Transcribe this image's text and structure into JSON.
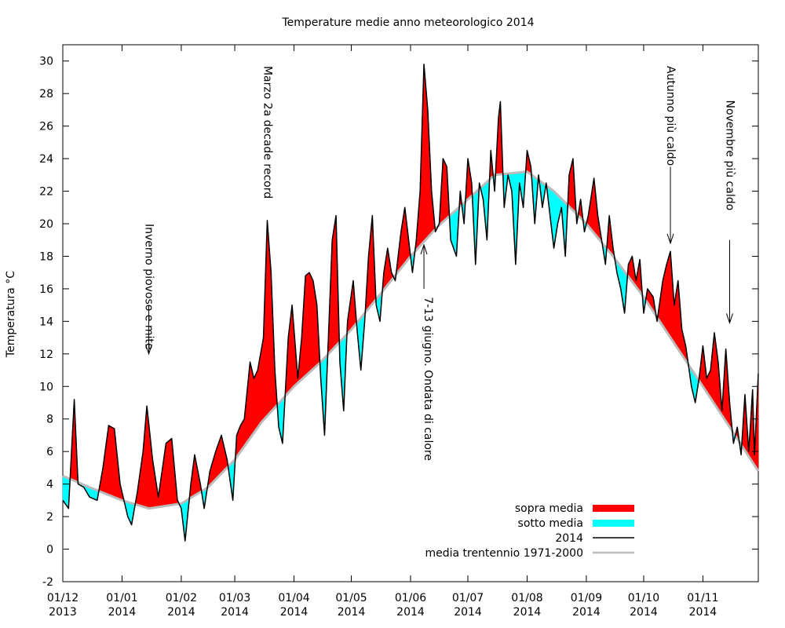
{
  "chart_data": {
    "type": "area",
    "title": "Temperature medie anno meteorologico 2014",
    "ylabel": "Temperatura °C",
    "xlabel": "",
    "ylim": [
      -2,
      31
    ],
    "yticks": [
      -2,
      0,
      2,
      4,
      6,
      8,
      10,
      12,
      14,
      16,
      18,
      20,
      22,
      24,
      26,
      28,
      30
    ],
    "x_range": [
      "2013-12-01",
      "2014-11-30"
    ],
    "xticks": [
      {
        "date": "2013-12-01",
        "label1": "01/12",
        "label2": "2013"
      },
      {
        "date": "2014-01-01",
        "label1": "01/01",
        "label2": "2014"
      },
      {
        "date": "2014-02-01",
        "label1": "01/02",
        "label2": "2014"
      },
      {
        "date": "2014-03-01",
        "label1": "01/03",
        "label2": "2014"
      },
      {
        "date": "2014-04-01",
        "label1": "01/04",
        "label2": "2014"
      },
      {
        "date": "2014-05-01",
        "label1": "01/05",
        "label2": "2014"
      },
      {
        "date": "2014-06-01",
        "label1": "01/06",
        "label2": "2014"
      },
      {
        "date": "2014-07-01",
        "label1": "01/07",
        "label2": "2014"
      },
      {
        "date": "2014-08-01",
        "label1": "01/08",
        "label2": "2014"
      },
      {
        "date": "2014-09-01",
        "label1": "01/09",
        "label2": "2014"
      },
      {
        "date": "2014-10-01",
        "label1": "01/10",
        "label2": "2014"
      },
      {
        "date": "2014-11-01",
        "label1": "01/11",
        "label2": "2014"
      }
    ],
    "legend": {
      "position": "bottom-right",
      "items": [
        {
          "label": "sopra media",
          "kind": "fill",
          "color": "#ff0000"
        },
        {
          "label": "sotto media",
          "kind": "fill",
          "color": "#00ffff"
        },
        {
          "label": "2014",
          "kind": "line",
          "color": "#000000"
        },
        {
          "label": "media trentennio 1971-2000",
          "kind": "line",
          "color": "#bbbbbb"
        }
      ]
    },
    "colors": {
      "above": "#ff0000",
      "below": "#00ffff",
      "actual": "#000000",
      "normal": "#bbbbbb"
    },
    "series": [
      {
        "name": "2014",
        "points": [
          [
            "2013-12-01",
            3.0
          ],
          [
            "2013-12-04",
            2.5
          ],
          [
            "2013-12-07",
            9.2
          ],
          [
            "2013-12-09",
            4.0
          ],
          [
            "2013-12-12",
            3.8
          ],
          [
            "2013-12-15",
            3.2
          ],
          [
            "2013-12-19",
            3.0
          ],
          [
            "2013-12-22",
            5.0
          ],
          [
            "2013-12-25",
            7.6
          ],
          [
            "2013-12-28",
            7.4
          ],
          [
            "2013-12-31",
            4.0
          ],
          [
            "2014-01-04",
            2.0
          ],
          [
            "2014-01-06",
            1.5
          ],
          [
            "2014-01-09",
            3.5
          ],
          [
            "2014-01-12",
            6.0
          ],
          [
            "2014-01-14",
            8.8
          ],
          [
            "2014-01-17",
            5.5
          ],
          [
            "2014-01-20",
            3.2
          ],
          [
            "2014-01-24",
            6.5
          ],
          [
            "2014-01-27",
            6.8
          ],
          [
            "2014-01-30",
            3.0
          ],
          [
            "2014-02-01",
            2.5
          ],
          [
            "2014-02-03",
            0.5
          ],
          [
            "2014-02-06",
            4.0
          ],
          [
            "2014-02-08",
            5.8
          ],
          [
            "2014-02-11",
            4.0
          ],
          [
            "2014-02-13",
            2.5
          ],
          [
            "2014-02-16",
            4.8
          ],
          [
            "2014-02-19",
            6.0
          ],
          [
            "2014-02-22",
            7.0
          ],
          [
            "2014-02-25",
            5.5
          ],
          [
            "2014-02-28",
            3.0
          ],
          [
            "2014-03-02",
            7.0
          ],
          [
            "2014-03-04",
            7.6
          ],
          [
            "2014-03-06",
            8.0
          ],
          [
            "2014-03-09",
            11.5
          ],
          [
            "2014-03-11",
            10.5
          ],
          [
            "2014-03-13",
            11.0
          ],
          [
            "2014-03-16",
            13.0
          ],
          [
            "2014-03-18",
            20.2
          ],
          [
            "2014-03-20",
            17.0
          ],
          [
            "2014-03-22",
            11.0
          ],
          [
            "2014-03-24",
            7.5
          ],
          [
            "2014-03-26",
            6.5
          ],
          [
            "2014-03-29",
            13.0
          ],
          [
            "2014-03-31",
            15.0
          ],
          [
            "2014-04-03",
            10.5
          ],
          [
            "2014-04-05",
            13.0
          ],
          [
            "2014-04-07",
            16.8
          ],
          [
            "2014-04-09",
            17.0
          ],
          [
            "2014-04-11",
            16.5
          ],
          [
            "2014-04-13",
            15.0
          ],
          [
            "2014-04-15",
            10.5
          ],
          [
            "2014-04-17",
            7.0
          ],
          [
            "2014-04-19",
            13.0
          ],
          [
            "2014-04-21",
            19.0
          ],
          [
            "2014-04-23",
            20.5
          ],
          [
            "2014-04-25",
            11.5
          ],
          [
            "2014-04-27",
            8.5
          ],
          [
            "2014-04-29",
            14.0
          ],
          [
            "2014-05-02",
            16.5
          ],
          [
            "2014-05-04",
            13.5
          ],
          [
            "2014-05-06",
            11.0
          ],
          [
            "2014-05-08",
            14.0
          ],
          [
            "2014-05-10",
            18.0
          ],
          [
            "2014-05-12",
            20.5
          ],
          [
            "2014-05-14",
            15.0
          ],
          [
            "2014-05-16",
            14.0
          ],
          [
            "2014-05-18",
            17.0
          ],
          [
            "2014-05-20",
            18.5
          ],
          [
            "2014-05-22",
            17.0
          ],
          [
            "2014-05-24",
            16.5
          ],
          [
            "2014-05-27",
            19.5
          ],
          [
            "2014-05-29",
            21.0
          ],
          [
            "2014-05-31",
            19.0
          ],
          [
            "2014-06-02",
            17.0
          ],
          [
            "2014-06-04",
            19.0
          ],
          [
            "2014-06-06",
            22.0
          ],
          [
            "2014-06-08",
            29.8
          ],
          [
            "2014-06-10",
            27.0
          ],
          [
            "2014-06-12",
            22.0
          ],
          [
            "2014-06-14",
            19.5
          ],
          [
            "2014-06-16",
            20.0
          ],
          [
            "2014-06-18",
            24.0
          ],
          [
            "2014-06-20",
            23.5
          ],
          [
            "2014-06-22",
            19.0
          ],
          [
            "2014-06-25",
            18.0
          ],
          [
            "2014-06-27",
            22.0
          ],
          [
            "2014-06-29",
            20.0
          ],
          [
            "2014-07-01",
            24.0
          ],
          [
            "2014-07-03",
            22.5
          ],
          [
            "2014-07-05",
            17.5
          ],
          [
            "2014-07-07",
            22.5
          ],
          [
            "2014-07-09",
            21.5
          ],
          [
            "2014-07-11",
            19.0
          ],
          [
            "2014-07-13",
            24.5
          ],
          [
            "2014-07-15",
            22.0
          ],
          [
            "2014-07-17",
            26.5
          ],
          [
            "2014-07-18",
            27.5
          ],
          [
            "2014-07-20",
            21.0
          ],
          [
            "2014-07-22",
            23.0
          ],
          [
            "2014-07-24",
            22.0
          ],
          [
            "2014-07-26",
            17.5
          ],
          [
            "2014-07-28",
            22.5
          ],
          [
            "2014-07-30",
            21.0
          ],
          [
            "2014-08-01",
            24.5
          ],
          [
            "2014-08-03",
            23.5
          ],
          [
            "2014-08-05",
            20.0
          ],
          [
            "2014-08-07",
            23.0
          ],
          [
            "2014-08-09",
            21.0
          ],
          [
            "2014-08-11",
            22.5
          ],
          [
            "2014-08-13",
            20.5
          ],
          [
            "2014-08-15",
            18.5
          ],
          [
            "2014-08-17",
            20.0
          ],
          [
            "2014-08-19",
            21.0
          ],
          [
            "2014-08-21",
            18.0
          ],
          [
            "2014-08-23",
            23.0
          ],
          [
            "2014-08-25",
            24.0
          ],
          [
            "2014-08-27",
            20.0
          ],
          [
            "2014-08-29",
            21.5
          ],
          [
            "2014-08-31",
            19.5
          ],
          [
            "2014-09-02",
            20.5
          ],
          [
            "2014-09-05",
            22.8
          ],
          [
            "2014-09-07",
            20.5
          ],
          [
            "2014-09-09",
            19.0
          ],
          [
            "2014-09-11",
            17.5
          ],
          [
            "2014-09-13",
            20.5
          ],
          [
            "2014-09-15",
            18.5
          ],
          [
            "2014-09-17",
            17.0
          ],
          [
            "2014-09-19",
            16.0
          ],
          [
            "2014-09-21",
            14.5
          ],
          [
            "2014-09-23",
            17.5
          ],
          [
            "2014-09-25",
            18.0
          ],
          [
            "2014-09-27",
            16.5
          ],
          [
            "2014-09-29",
            17.8
          ],
          [
            "2014-10-01",
            14.5
          ],
          [
            "2014-10-03",
            16.0
          ],
          [
            "2014-10-06",
            15.5
          ],
          [
            "2014-10-08",
            14.0
          ],
          [
            "2014-10-11",
            16.5
          ],
          [
            "2014-10-13",
            17.5
          ],
          [
            "2014-10-15",
            18.3
          ],
          [
            "2014-10-17",
            15.0
          ],
          [
            "2014-10-19",
            16.5
          ],
          [
            "2014-10-21",
            13.5
          ],
          [
            "2014-10-23",
            12.5
          ],
          [
            "2014-10-26",
            10.0
          ],
          [
            "2014-10-28",
            9.0
          ],
          [
            "2014-10-30",
            10.5
          ],
          [
            "2014-11-01",
            12.5
          ],
          [
            "2014-11-03",
            10.5
          ],
          [
            "2014-11-05",
            11.0
          ],
          [
            "2014-11-07",
            13.3
          ],
          [
            "2014-11-09",
            11.5
          ],
          [
            "2014-11-11",
            8.5
          ],
          [
            "2014-11-13",
            12.3
          ],
          [
            "2014-11-15",
            9.0
          ],
          [
            "2014-11-17",
            6.5
          ],
          [
            "2014-11-19",
            7.5
          ],
          [
            "2014-11-21",
            5.8
          ],
          [
            "2014-11-23",
            9.5
          ],
          [
            "2014-11-25",
            6.0
          ],
          [
            "2014-11-27",
            9.8
          ],
          [
            "2014-11-28",
            5.8
          ],
          [
            "2014-11-30",
            10.8
          ]
        ]
      },
      {
        "name": "media trentennio 1971-2000",
        "points": [
          [
            "2013-12-01",
            4.5
          ],
          [
            "2013-12-15",
            3.8
          ],
          [
            "2014-01-01",
            3.0
          ],
          [
            "2014-01-15",
            2.5
          ],
          [
            "2014-02-01",
            2.8
          ],
          [
            "2014-02-15",
            3.8
          ],
          [
            "2014-03-01",
            5.5
          ],
          [
            "2014-03-15",
            7.8
          ],
          [
            "2014-04-01",
            10.0
          ],
          [
            "2014-04-15",
            11.5
          ],
          [
            "2014-05-01",
            13.5
          ],
          [
            "2014-05-15",
            15.5
          ],
          [
            "2014-06-01",
            18.0
          ],
          [
            "2014-06-15",
            19.8
          ],
          [
            "2014-07-01",
            21.5
          ],
          [
            "2014-07-15",
            23.0
          ],
          [
            "2014-08-01",
            23.2
          ],
          [
            "2014-08-15",
            22.0
          ],
          [
            "2014-09-01",
            20.0
          ],
          [
            "2014-09-15",
            18.0
          ],
          [
            "2014-10-01",
            15.5
          ],
          [
            "2014-10-15",
            13.0
          ],
          [
            "2014-11-01",
            10.0
          ],
          [
            "2014-11-15",
            7.5
          ],
          [
            "2014-11-30",
            4.8
          ]
        ]
      }
    ],
    "annotations": [
      {
        "text": "Inverno piovoso e mite",
        "text_date": "2014-01-15",
        "text_top": 20.0,
        "arrow_date": "2014-01-15",
        "arrow_from": 15.0,
        "arrow_to": 12.0
      },
      {
        "text": "Marzo 2a decade record",
        "text_date": "2014-03-18",
        "text_top": 29.7,
        "arrow": false
      },
      {
        "text": "7-13 giugno. Ondata di calore",
        "text_date": "2014-06-10",
        "text_top": 15.5,
        "arrow_date": "2014-06-08",
        "arrow_from": 16.0,
        "arrow_to": 18.7
      },
      {
        "text": "Autunno più caldo",
        "text_date": "2014-10-15",
        "text_top": 29.7,
        "arrow_date": "2014-10-15",
        "arrow_from": 23.5,
        "arrow_to": 18.8
      },
      {
        "text": "Novembre più caldo",
        "text_date": "2014-11-15",
        "text_top": 27.6,
        "arrow_date": "2014-11-15",
        "arrow_from": 19.0,
        "arrow_to": 13.9
      }
    ]
  }
}
